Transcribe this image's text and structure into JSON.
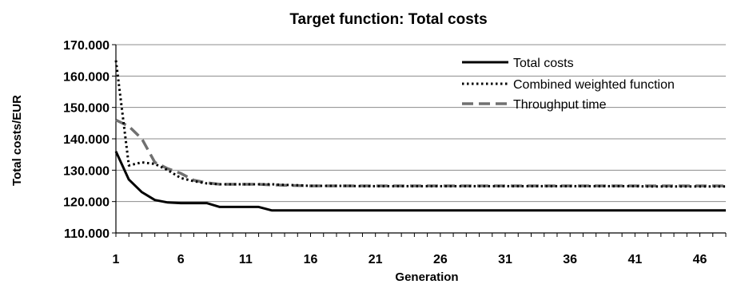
{
  "chart_data": {
    "type": "line",
    "title": "Target function: Total costs",
    "xlabel": "Generation",
    "ylabel": "Total costs/EUR",
    "xlim": [
      1,
      48
    ],
    "ylim": [
      110000,
      170000
    ],
    "x_ticks": [
      "1",
      "6",
      "11",
      "16",
      "21",
      "26",
      "31",
      "36",
      "41",
      "46"
    ],
    "y_ticks": [
      "110.000",
      "120.000",
      "130.000",
      "140.000",
      "150.000",
      "160.000",
      "170.000"
    ],
    "grid": "horizontal",
    "legend_position": "top-right",
    "x": [
      1,
      2,
      3,
      4,
      5,
      6,
      7,
      8,
      9,
      10,
      11,
      12,
      13,
      14,
      15,
      16,
      17,
      18,
      19,
      20,
      21,
      22,
      23,
      24,
      25,
      26,
      27,
      28,
      29,
      30,
      31,
      32,
      33,
      34,
      35,
      36,
      37,
      38,
      39,
      40,
      41,
      42,
      43,
      44,
      45,
      46,
      47,
      48
    ],
    "series": [
      {
        "name": "Total costs",
        "style": "solid",
        "color": "#000000",
        "values": [
          136000,
          127000,
          123000,
          120500,
          119700,
          119500,
          119500,
          119500,
          118300,
          118300,
          118300,
          118300,
          117200,
          117200,
          117200,
          117200,
          117200,
          117200,
          117200,
          117200,
          117200,
          117200,
          117200,
          117200,
          117200,
          117200,
          117200,
          117200,
          117200,
          117200,
          117200,
          117200,
          117200,
          117200,
          117200,
          117200,
          117200,
          117200,
          117200,
          117200,
          117200,
          117200,
          117200,
          117200,
          117200,
          117200,
          117200,
          117200
        ]
      },
      {
        "name": "Combined weighted function",
        "style": "dotted",
        "color": "#000000",
        "values": [
          165000,
          131500,
          132500,
          132000,
          130000,
          127500,
          126500,
          125800,
          125500,
          125500,
          125500,
          125500,
          125500,
          125300,
          125200,
          125000,
          125000,
          125000,
          125000,
          124900,
          124900,
          124900,
          124900,
          124900,
          124900,
          124900,
          124900,
          124900,
          124900,
          124900,
          124900,
          124900,
          124900,
          124900,
          124900,
          124900,
          124900,
          124900,
          124900,
          124900,
          124900,
          124800,
          124800,
          124800,
          124800,
          124800,
          124800,
          124800
        ]
      },
      {
        "name": "Throughput time",
        "style": "dashed",
        "color": "#707070",
        "values": [
          146000,
          144000,
          140000,
          132500,
          130500,
          129000,
          126800,
          126000,
          125500,
          125500,
          125500,
          125500,
          125300,
          125200,
          125100,
          125000,
          125000,
          125000,
          125000,
          125000,
          125000,
          125000,
          125000,
          125000,
          125000,
          125000,
          125000,
          125000,
          125000,
          125000,
          125000,
          125000,
          125000,
          125000,
          125000,
          125000,
          125000,
          125000,
          125000,
          125000,
          125000,
          125000,
          125000,
          125000,
          125000,
          125000,
          125000,
          125000
        ]
      }
    ]
  }
}
